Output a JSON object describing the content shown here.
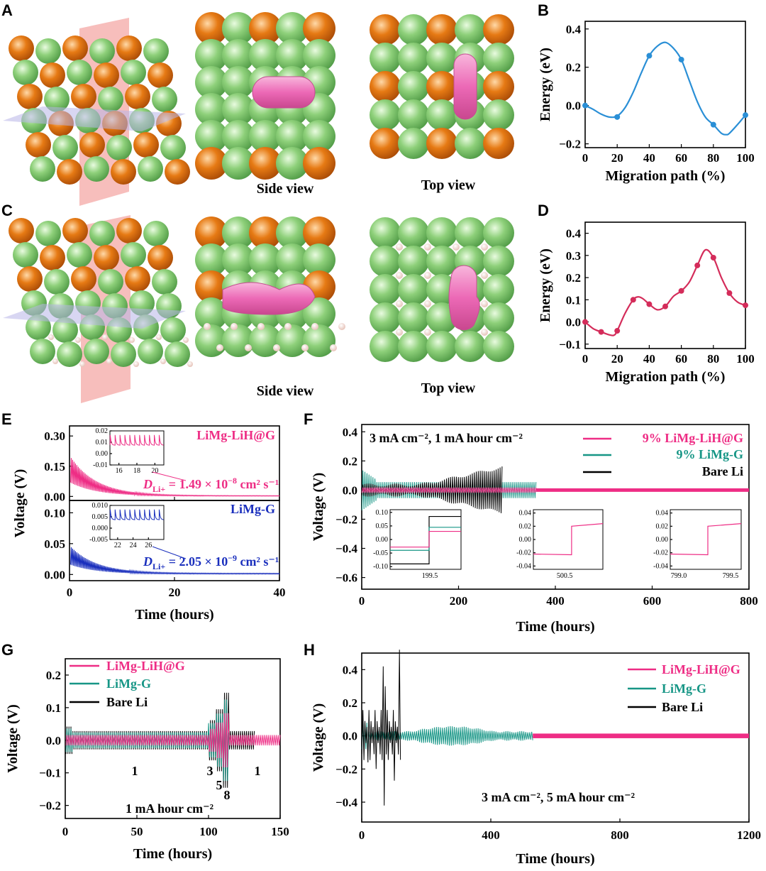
{
  "colors": {
    "pink": "#ee2d85",
    "teal": "#179686",
    "black": "#000000",
    "blue_curve": "#2a8fd6",
    "crimson_curve": "#d42c5a",
    "blue_text": "#1a2fbd",
    "green_atom": "#8ed07a",
    "orange_atom": "#e67a14",
    "li_path": "#ec69b6",
    "h_atom": "#f2d7cf",
    "side_view": "#f18a7e",
    "top_view": "#b46ad8",
    "plane_red": "#f4a2a0",
    "plane_blue": "#b8b4e8"
  },
  "panel_labels": {
    "A": "A",
    "B": "B",
    "C": "C",
    "D": "D",
    "E": "E",
    "F": "F",
    "G": "G",
    "H": "H"
  },
  "structures": {
    "A": {
      "side_caption": "Side view",
      "top_caption": "Top view"
    },
    "C": {
      "side_caption": "Side view",
      "top_caption": "Top view"
    }
  },
  "chart_data": [
    {
      "id": "B",
      "type": "line",
      "xlabel": "Migration path (%)",
      "ylabel": "Energy (eV)",
      "xlim": [
        0,
        100
      ],
      "ylim": [
        -0.22,
        0.44
      ],
      "xticks": [
        "0",
        "20",
        "40",
        "60",
        "80",
        "100"
      ],
      "yticks": [
        "−0.2",
        "0.0",
        "0.2",
        "0.4"
      ],
      "points": {
        "x": [
          0,
          20,
          40,
          60,
          80,
          100
        ],
        "y": [
          0.0,
          -0.06,
          0.26,
          0.24,
          -0.1,
          -0.05
        ]
      },
      "curve": {
        "x": [
          0,
          5,
          10,
          15,
          20,
          25,
          30,
          35,
          40,
          45,
          50,
          55,
          60,
          65,
          70,
          75,
          80,
          85,
          88,
          90,
          95,
          100
        ],
        "y": [
          0.0,
          -0.02,
          -0.045,
          -0.06,
          -0.055,
          -0.01,
          0.07,
          0.17,
          0.26,
          0.31,
          0.33,
          0.3,
          0.24,
          0.13,
          0.02,
          -0.06,
          -0.1,
          -0.145,
          -0.152,
          -0.145,
          -0.1,
          -0.05
        ]
      }
    },
    {
      "id": "D",
      "type": "line",
      "xlabel": "Migration path (%)",
      "ylabel": "Energy (eV)",
      "xlim": [
        0,
        100
      ],
      "ylim": [
        -0.12,
        0.45
      ],
      "xticks": [
        "0",
        "20",
        "40",
        "60",
        "80",
        "100"
      ],
      "yticks": [
        "−0.1",
        "0.0",
        "0.1",
        "0.2",
        "0.3",
        "0.4"
      ],
      "points": {
        "x": [
          0,
          10,
          20,
          30,
          40,
          50,
          60,
          70,
          80,
          90,
          100
        ],
        "y": [
          0.0,
          -0.045,
          -0.04,
          0.1,
          0.08,
          0.07,
          0.14,
          0.255,
          0.29,
          0.13,
          0.075
        ]
      },
      "curve": {
        "x": [
          0,
          5,
          10,
          15,
          18,
          20,
          25,
          30,
          33,
          36,
          40,
          45,
          50,
          55,
          60,
          65,
          70,
          75,
          80,
          85,
          90,
          95,
          100
        ],
        "y": [
          0.0,
          -0.03,
          -0.045,
          -0.058,
          -0.06,
          -0.04,
          0.04,
          0.1,
          0.113,
          0.105,
          0.08,
          0.055,
          0.07,
          0.115,
          0.14,
          0.18,
          0.255,
          0.325,
          0.29,
          0.2,
          0.13,
          0.09,
          0.075
        ]
      }
    },
    {
      "id": "E",
      "type": "line",
      "xlabel": "Time (hours)",
      "ylabel": "Voltage (V)",
      "xlim": [
        0,
        40
      ],
      "xticks": [
        "0",
        "20",
        "40"
      ],
      "subplots": [
        {
          "name": "LiMg-LiH@G",
          "ylim": [
            -0.02,
            0.35
          ],
          "yticks": [
            "0.00",
            "0.15",
            "0.30"
          ],
          "annotation": "= 1.49 × 10",
          "exp": "−8",
          "unit": " cm² s⁻¹",
          "sym": "D",
          "sub": "Li+",
          "inset": {
            "xlim": [
              15,
              21
            ],
            "ylim": [
              -0.01,
              0.02
            ],
            "xticks": [
              "16",
              "18",
              "20"
            ],
            "yticks": [
              "0.02",
              "0.01",
              "0.00",
              "-0.01"
            ]
          }
        },
        {
          "name": "LiMg-G",
          "ylim": [
            -0.01,
            0.12
          ],
          "yticks": [
            "0.00",
            "0.05",
            "0.10"
          ],
          "annotation": "= 2.05 × 10",
          "exp": "−9",
          "unit": " cm² s⁻¹",
          "sym": "D",
          "sub": "Li+",
          "inset": {
            "xlim": [
              21,
              28
            ],
            "ylim": [
              -0.005,
              0.01
            ],
            "xticks": [
              "22",
              "24",
              "26"
            ],
            "yticks": [
              "0.010",
              "0.005",
              "0.000",
              "-0.005"
            ]
          }
        }
      ]
    },
    {
      "id": "F",
      "type": "line",
      "xlabel": "Time (hours)",
      "ylabel": "Voltage (V)",
      "xlim": [
        0,
        800
      ],
      "ylim": [
        -0.68,
        0.45
      ],
      "xticks": [
        "0",
        "200",
        "400",
        "600",
        "800"
      ],
      "yticks": [
        "0.4",
        "0.2",
        "0.0",
        "−0.2",
        "−0.4",
        "−0.6"
      ],
      "condition": "3 mA  cm⁻², 1 mA hour cm⁻²",
      "series": [
        {
          "name": "9% LiMg-LiH@G",
          "end": 800
        },
        {
          "name": "9% LiMg-G",
          "end": 360
        },
        {
          "name": "Bare Li",
          "end": 290
        }
      ],
      "insets": [
        {
          "xlabel": "199.5",
          "yticks": [
            "0.10",
            "0.05",
            "0.00",
            "-0.05",
            "-0.10"
          ]
        },
        {
          "xlabel": "500.5",
          "yticks": [
            "0.04",
            "0.02",
            "0.00",
            "-0.02",
            "-0.04"
          ]
        },
        {
          "xlabel1": "799.0",
          "xlabel2": "799.5",
          "yticks": [
            "0.04",
            "0.02",
            "0.00",
            "-0.02",
            "-0.04"
          ]
        }
      ]
    },
    {
      "id": "G",
      "type": "line",
      "xlabel": "Time (hours)",
      "ylabel": "Voltage (V)",
      "xlim": [
        0,
        150
      ],
      "ylim": [
        -0.24,
        0.25
      ],
      "xticks": [
        "0",
        "50",
        "100",
        "150"
      ],
      "yticks": [
        "0.2",
        "0.1",
        "0.0",
        "−0.1",
        "−0.2"
      ],
      "condition": "1 mA hour cm⁻²",
      "series": [
        {
          "name": "LiMg-LiH@G"
        },
        {
          "name": "LiMg-G"
        },
        {
          "name": "Bare Li"
        }
      ],
      "rate_labels": [
        "1",
        "3",
        "5",
        "8",
        "1"
      ]
    },
    {
      "id": "H",
      "type": "line",
      "xlabel": "Time (hours)",
      "ylabel": "Voltage (V)",
      "xlim": [
        0,
        1200
      ],
      "ylim": [
        -0.52,
        0.5
      ],
      "xticks": [
        "0",
        "400",
        "800",
        "1200"
      ],
      "yticks": [
        "0.4",
        "0.2",
        "0.0",
        "−0.2",
        "−0.4"
      ],
      "condition": "3 mA cm⁻², 5 mA hour cm⁻²",
      "series": [
        {
          "name": "LiMg-LiH@G",
          "end": 1200
        },
        {
          "name": "LiMg-G",
          "end": 530
        },
        {
          "name": "Bare Li",
          "end": 120
        }
      ]
    }
  ]
}
